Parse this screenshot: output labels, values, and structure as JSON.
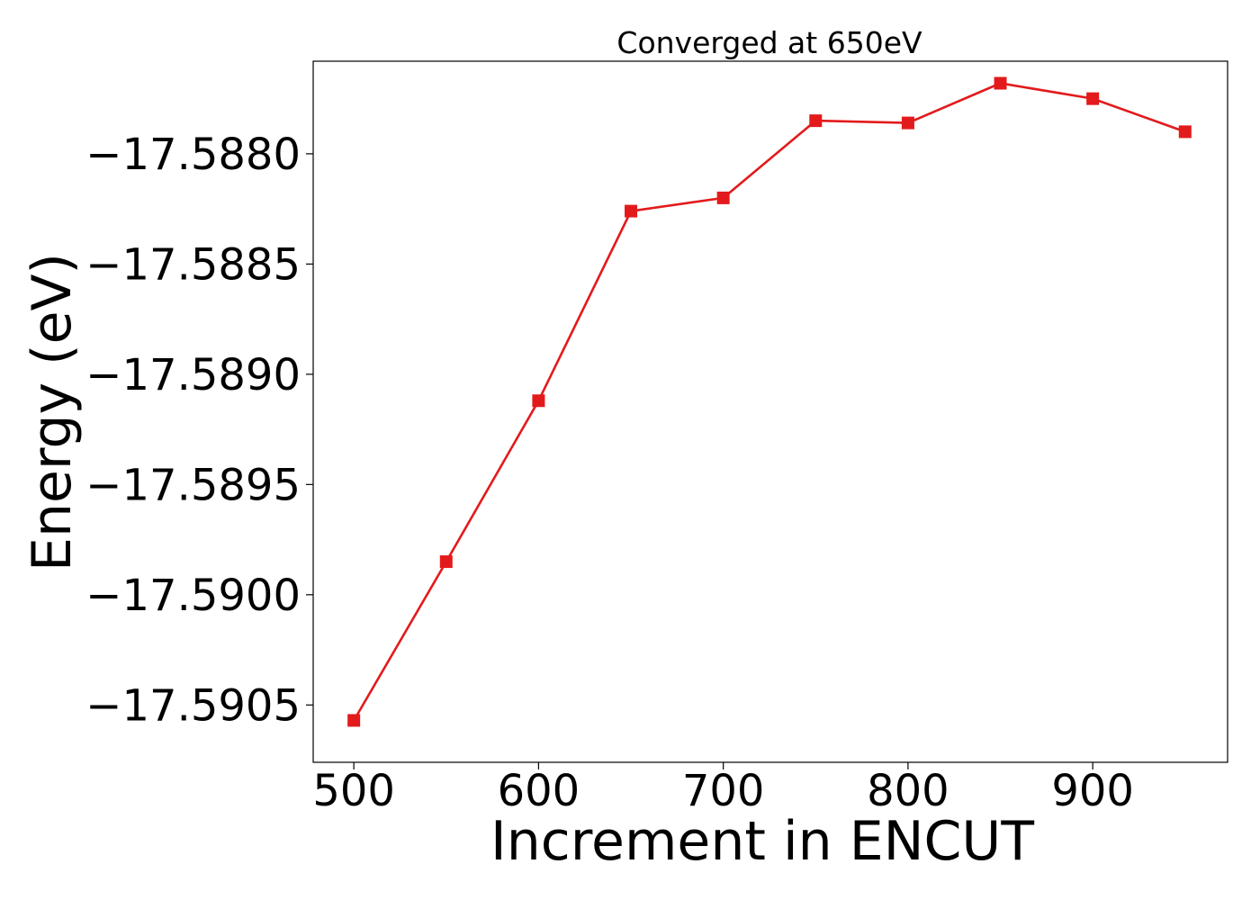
{
  "chart_data": {
    "type": "line",
    "title": "Converged at 650eV",
    "xlabel": "Increment in ENCUT",
    "ylabel": "Energy (eV)",
    "x": [
      500,
      550,
      600,
      650,
      700,
      750,
      800,
      850,
      900,
      950
    ],
    "series": [
      {
        "values": [
          -17.59057,
          -17.58985,
          -17.58912,
          -17.58826,
          -17.5882,
          -17.58785,
          -17.58786,
          -17.58768,
          -17.58775,
          -17.5879
        ],
        "color": "#e31a1c",
        "marker": "square"
      }
    ],
    "xlim": [
      478,
      973
    ],
    "ylim": [
      -17.59076,
      -17.58758
    ],
    "xticks": [
      500,
      600,
      700,
      800,
      900
    ],
    "xtick_labels": [
      "500",
      "600",
      "700",
      "800",
      "900"
    ],
    "yticks": [
      -17.588,
      -17.5885,
      -17.589,
      -17.5895,
      -17.59,
      -17.5905
    ],
    "ytick_labels": [
      "−17.5880",
      "−17.5885",
      "−17.5890",
      "−17.5895",
      "−17.5900",
      "−17.5905"
    ],
    "grid": false,
    "legend": "none"
  }
}
